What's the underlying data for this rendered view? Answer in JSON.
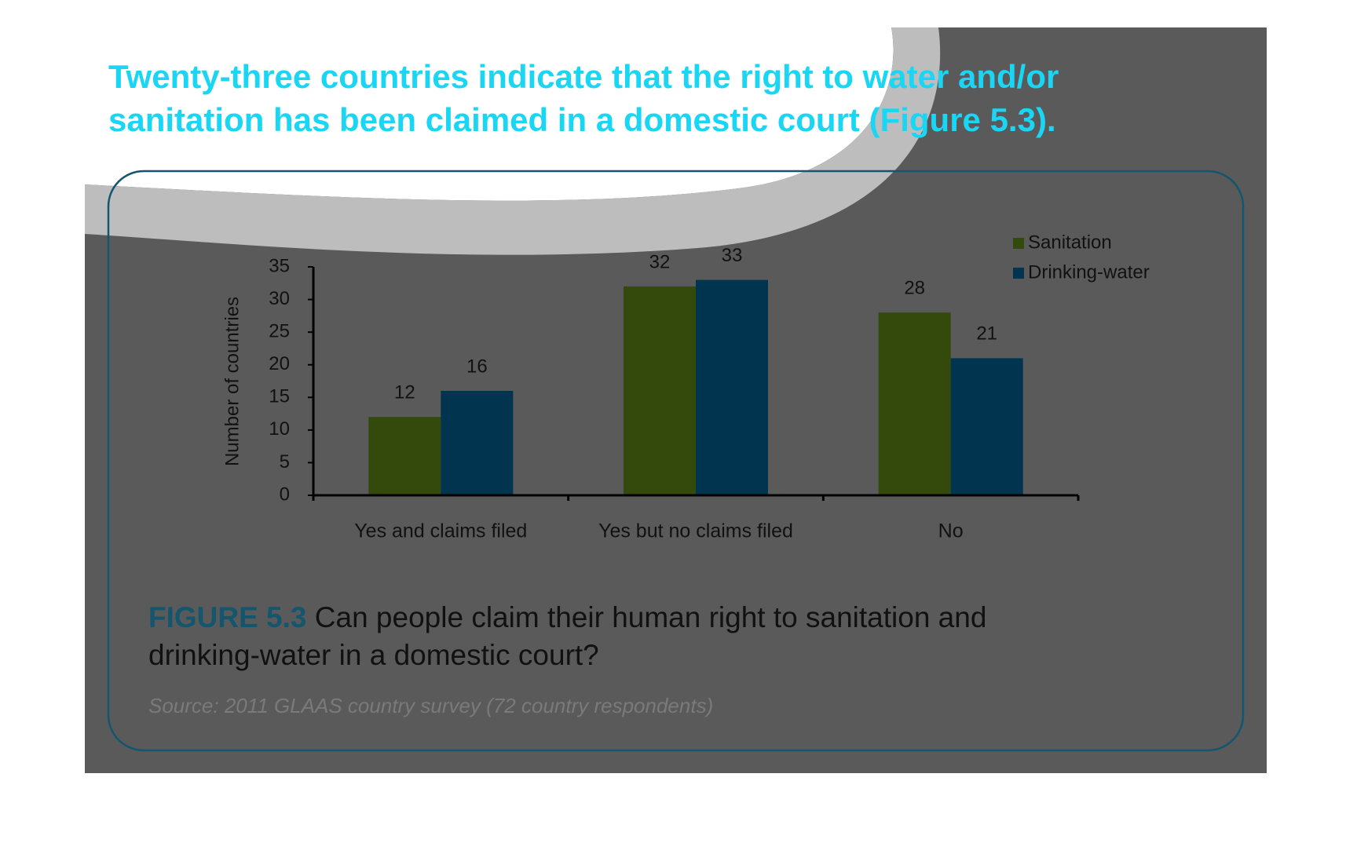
{
  "headline": [
    "Twenty-three countries indicate that the right to water and/or",
    "sanitation has been claimed in a domestic court (Figure 5.3)."
  ],
  "figure_label": "FIGURE 5.3",
  "caption": [
    "Can people claim their human right to sanitation and",
    "drinking-water in a domestic court?"
  ],
  "source": "Source: 2011 GLAAS country survey (72 country respondents)",
  "chart_data": {
    "type": "bar",
    "y_label": "Number of countries",
    "categories": [
      "Yes and claims filed",
      "Yes but no claims filed",
      "No"
    ],
    "series": [
      {
        "name": "Sanitation",
        "color": "#334a0c",
        "values": [
          12,
          32,
          28
        ]
      },
      {
        "name": "Drinking-water",
        "color": "#00344f",
        "values": [
          16,
          33,
          21
        ]
      }
    ],
    "ylim": [
      0,
      35
    ],
    "yticks": [
      0,
      5,
      10,
      15,
      20,
      25,
      30,
      35
    ],
    "grid": false,
    "legend": "top-right"
  }
}
